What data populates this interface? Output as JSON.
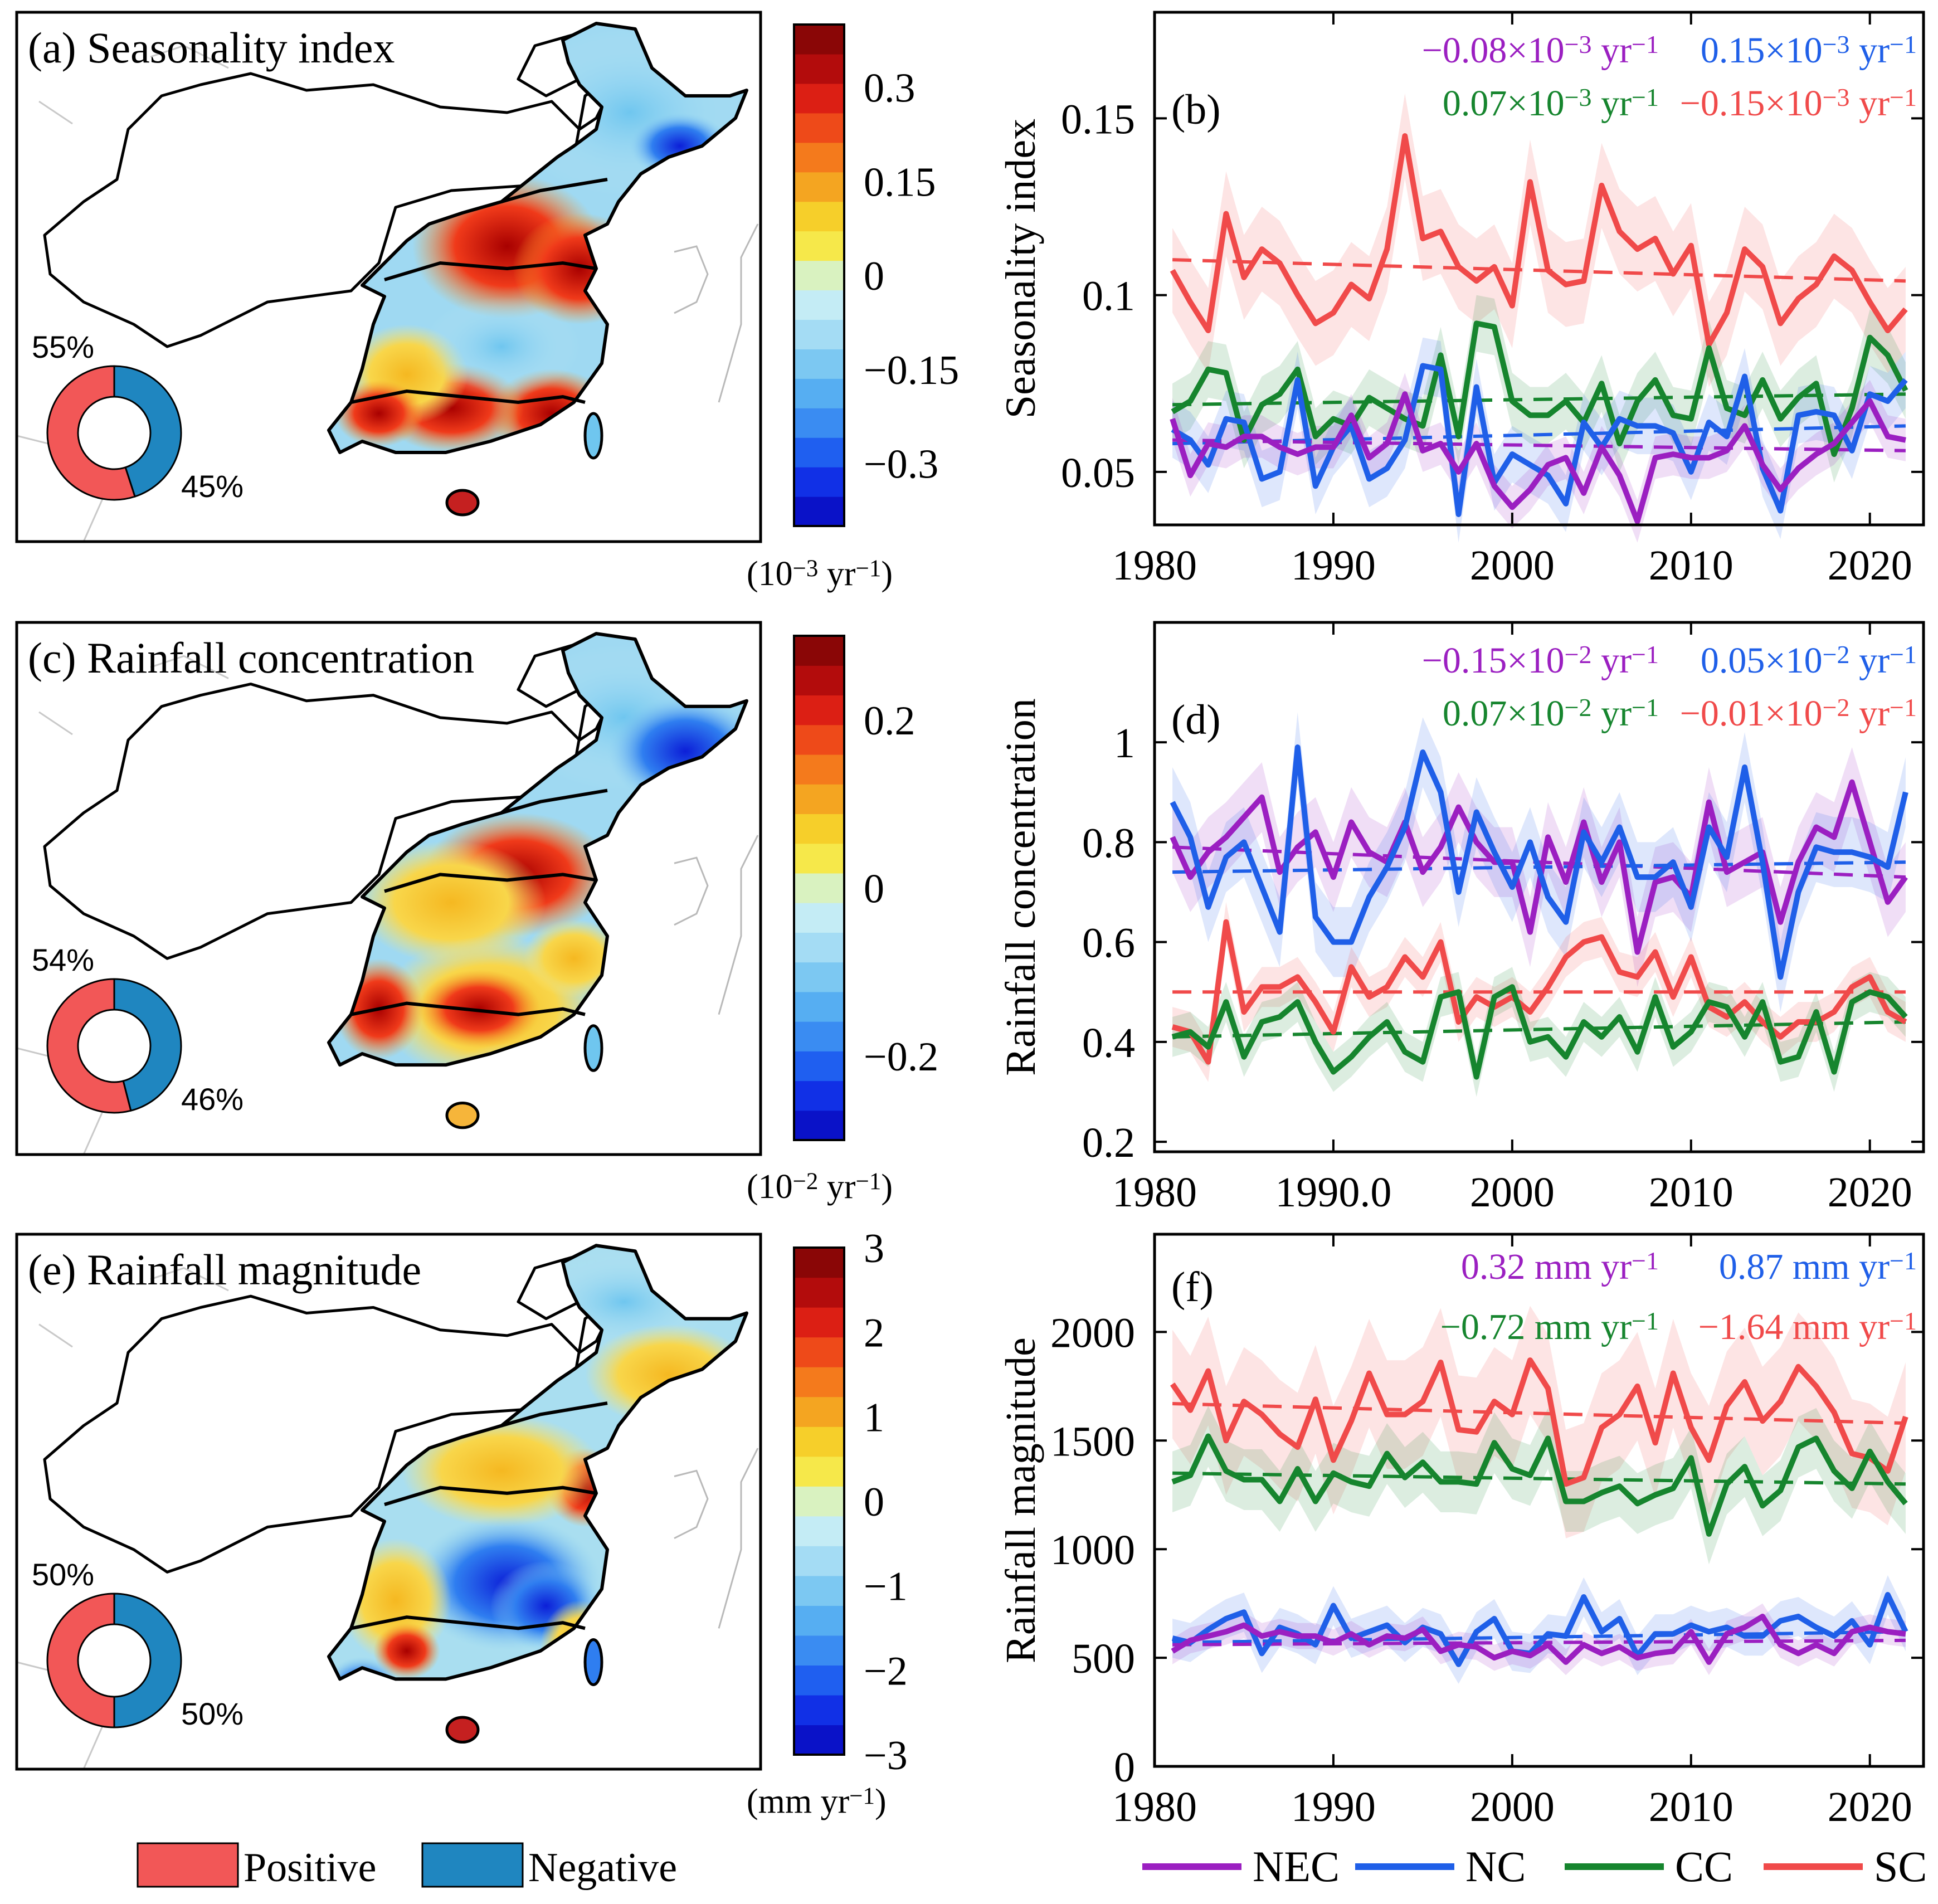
{
  "colors": {
    "NEC": "#9b1fc1",
    "NC": "#1f5fe8",
    "CC": "#16852e",
    "SC": "#f04a4a",
    "positive": "#f25757",
    "negative": "#1f86c0"
  },
  "legend_bottom": {
    "positive": "Positive",
    "negative": "Negative"
  },
  "legend_series": [
    "NEC",
    "NC",
    "CC",
    "SC"
  ],
  "maps": [
    {
      "title": "(a) Seasonality index",
      "positive_pct": 55,
      "negative_pct": 45,
      "positive_label": "55%",
      "negative_label": "45%",
      "colorbar": {
        "tick_labels": [
          "0.3",
          "0.15",
          "0",
          "−0.15",
          "−0.3"
        ],
        "tick_values": [
          0.3,
          0.15,
          0,
          -0.15,
          -0.3
        ],
        "min": -0.4,
        "max": 0.4,
        "unit_prefix": "(10",
        "unit_exp": "−3",
        "unit_mid": " yr",
        "unit_exp2": "−1",
        "unit_suffix": ")"
      }
    },
    {
      "title": "(c) Rainfall concentration",
      "positive_pct": 54,
      "negative_pct": 46,
      "positive_label": "54%",
      "negative_label": "46%",
      "colorbar": {
        "tick_labels": [
          "0.2",
          "0",
          "−0.2"
        ],
        "tick_values": [
          0.2,
          0,
          -0.2
        ],
        "min": -0.3,
        "max": 0.3,
        "unit_prefix": "(10",
        "unit_exp": "−2",
        "unit_mid": " yr",
        "unit_exp2": "−1",
        "unit_suffix": ")"
      }
    },
    {
      "title": "(e) Rainfall magnitude",
      "positive_pct": 50,
      "negative_pct": 50,
      "positive_label": "50%",
      "negative_label": "50%",
      "colorbar": {
        "tick_labels": [
          "3",
          "2",
          "1",
          "0",
          "−1",
          "−2",
          "−3"
        ],
        "tick_values": [
          3,
          2,
          1,
          0,
          -1,
          -2,
          -3
        ],
        "min": -3,
        "max": 3,
        "unit_prefix": "(mm yr",
        "unit_exp": "−1",
        "unit_mid": "",
        "unit_exp2": "",
        "unit_suffix": ")"
      }
    }
  ],
  "chart_data": [
    {
      "type": "line",
      "panel": "(b)",
      "ylabel": "Seasonality index",
      "ylim": [
        0.035,
        0.18
      ],
      "yticks": [
        0.05,
        0.1,
        0.15
      ],
      "ytick_labels": [
        "0.05",
        "0.1",
        "0.15"
      ],
      "xlim": [
        1980,
        2023
      ],
      "xticks": [
        1980,
        1990,
        2000,
        2010,
        2020
      ],
      "xtick_labels": [
        "1980",
        "1990",
        "2000",
        "2010",
        "2020"
      ],
      "trends": [
        {
          "series": "NEC",
          "num": "−0.08×10",
          "exp": "−3",
          "unit": " yr",
          "uexp": "−1"
        },
        {
          "series": "NC",
          "num": "0.15×10",
          "exp": "−3",
          "unit": " yr",
          "uexp": "−1"
        },
        {
          "series": "CC",
          "num": "0.07×10",
          "exp": "−3",
          "unit": " yr",
          "uexp": "−1"
        },
        {
          "series": "SC",
          "num": "−0.15×10",
          "exp": "−3",
          "unit": " yr",
          "uexp": "−1"
        }
      ],
      "x": [
        1981,
        1982,
        1983,
        1984,
        1985,
        1986,
        1987,
        1988,
        1989,
        1990,
        1991,
        1992,
        1993,
        1994,
        1995,
        1996,
        1997,
        1998,
        1999,
        2000,
        2001,
        2002,
        2003,
        2004,
        2005,
        2006,
        2007,
        2008,
        2009,
        2010,
        2011,
        2012,
        2013,
        2014,
        2015,
        2016,
        2017,
        2018,
        2019,
        2020,
        2021,
        2022
      ],
      "series": [
        {
          "name": "SC",
          "band": 0.012,
          "trend": [
            0.11,
            0.104
          ],
          "values": [
            0.107,
            0.098,
            0.09,
            0.123,
            0.105,
            0.113,
            0.109,
            0.1,
            0.092,
            0.095,
            0.103,
            0.099,
            0.113,
            0.145,
            0.116,
            0.118,
            0.108,
            0.104,
            0.108,
            0.097,
            0.132,
            0.107,
            0.103,
            0.104,
            0.131,
            0.118,
            0.113,
            0.116,
            0.106,
            0.114,
            0.086,
            0.095,
            0.113,
            0.108,
            0.092,
            0.099,
            0.103,
            0.111,
            0.107,
            0.098,
            0.09,
            0.096
          ]
        },
        {
          "name": "CC",
          "band": 0.008,
          "trend": [
            0.069,
            0.072
          ],
          "values": [
            0.067,
            0.07,
            0.079,
            0.078,
            0.059,
            0.069,
            0.072,
            0.079,
            0.06,
            0.065,
            0.063,
            0.071,
            0.068,
            0.065,
            0.063,
            0.083,
            0.06,
            0.092,
            0.091,
            0.07,
            0.066,
            0.066,
            0.07,
            0.064,
            0.075,
            0.058,
            0.07,
            0.076,
            0.066,
            0.065,
            0.085,
            0.068,
            0.066,
            0.076,
            0.065,
            0.071,
            0.075,
            0.055,
            0.068,
            0.088,
            0.083,
            0.073
          ]
        },
        {
          "name": "NC",
          "band": 0.008,
          "trend": [
            0.058,
            0.063
          ],
          "values": [
            0.062,
            0.059,
            0.052,
            0.065,
            0.064,
            0.048,
            0.05,
            0.076,
            0.046,
            0.057,
            0.063,
            0.048,
            0.051,
            0.059,
            0.08,
            0.079,
            0.038,
            0.074,
            0.047,
            0.055,
            0.052,
            0.049,
            0.041,
            0.064,
            0.057,
            0.065,
            0.063,
            0.063,
            0.061,
            0.05,
            0.064,
            0.06,
            0.077,
            0.051,
            0.039,
            0.066,
            0.067,
            0.066,
            0.056,
            0.072,
            0.07,
            0.076
          ]
        },
        {
          "name": "NEC",
          "band": 0.006,
          "trend": [
            0.059,
            0.056
          ],
          "values": [
            0.065,
            0.049,
            0.058,
            0.057,
            0.06,
            0.06,
            0.057,
            0.055,
            0.057,
            0.057,
            0.066,
            0.054,
            0.058,
            0.072,
            0.056,
            0.058,
            0.05,
            0.058,
            0.046,
            0.04,
            0.045,
            0.052,
            0.054,
            0.044,
            0.057,
            0.049,
            0.036,
            0.054,
            0.055,
            0.054,
            0.054,
            0.056,
            0.063,
            0.052,
            0.045,
            0.051,
            0.055,
            0.058,
            0.064,
            0.07,
            0.06,
            0.059
          ]
        }
      ]
    },
    {
      "type": "line",
      "panel": "(d)",
      "ylabel": "Rainfall concentration",
      "ylim": [
        0.18,
        1.24
      ],
      "yticks": [
        0.2,
        0.4,
        0.6,
        0.8,
        1.0
      ],
      "ytick_labels": [
        "0.2",
        "0.4",
        "0.6",
        "0.8",
        "1"
      ],
      "xlim": [
        1980,
        2023
      ],
      "xticks": [
        1980,
        1990,
        2000,
        2010,
        2020
      ],
      "xtick_labels": [
        "1980",
        "1990.0",
        "2000",
        "2010",
        "2020"
      ],
      "trends": [
        {
          "series": "NEC",
          "num": "−0.15×10",
          "exp": "−2",
          "unit": " yr",
          "uexp": "−1"
        },
        {
          "series": "NC",
          "num": "0.05×10",
          "exp": "−2",
          "unit": " yr",
          "uexp": "−1"
        },
        {
          "series": "CC",
          "num": "0.07×10",
          "exp": "−2",
          "unit": " yr",
          "uexp": "−1"
        },
        {
          "series": "SC",
          "num": "−0.01×10",
          "exp": "−2",
          "unit": " yr",
          "uexp": "−1"
        }
      ],
      "x": [
        1981,
        1982,
        1983,
        1984,
        1985,
        1986,
        1987,
        1988,
        1989,
        1990,
        1991,
        1992,
        1993,
        1994,
        1995,
        1996,
        1997,
        1998,
        1999,
        2000,
        2001,
        2002,
        2003,
        2004,
        2005,
        2006,
        2007,
        2008,
        2009,
        2010,
        2011,
        2012,
        2013,
        2014,
        2015,
        2016,
        2017,
        2018,
        2019,
        2020,
        2021,
        2022
      ],
      "series": [
        {
          "name": "NEC",
          "band": 0.07,
          "trend": [
            0.79,
            0.73
          ],
          "values": [
            0.81,
            0.73,
            0.78,
            0.81,
            0.85,
            0.89,
            0.74,
            0.79,
            0.82,
            0.73,
            0.84,
            0.78,
            0.76,
            0.84,
            0.74,
            0.79,
            0.87,
            0.8,
            0.76,
            0.76,
            0.62,
            0.81,
            0.72,
            0.84,
            0.72,
            0.8,
            0.58,
            0.72,
            0.73,
            0.69,
            0.88,
            0.74,
            0.76,
            0.78,
            0.64,
            0.76,
            0.83,
            0.81,
            0.92,
            0.8,
            0.68,
            0.73
          ]
        },
        {
          "name": "NC",
          "band": 0.07,
          "trend": [
            0.74,
            0.76
          ],
          "values": [
            0.88,
            0.81,
            0.67,
            0.77,
            0.8,
            0.71,
            0.62,
            0.99,
            0.65,
            0.6,
            0.6,
            0.69,
            0.75,
            0.83,
            0.98,
            0.9,
            0.7,
            0.86,
            0.78,
            0.71,
            0.8,
            0.69,
            0.64,
            0.82,
            0.76,
            0.83,
            0.73,
            0.73,
            0.76,
            0.67,
            0.83,
            0.77,
            0.95,
            0.76,
            0.53,
            0.7,
            0.79,
            0.78,
            0.78,
            0.77,
            0.75,
            0.9
          ]
        },
        {
          "name": "SC",
          "band": 0.04,
          "trend": [
            0.5,
            0.5
          ],
          "values": [
            0.43,
            0.42,
            0.36,
            0.64,
            0.46,
            0.51,
            0.51,
            0.53,
            0.48,
            0.42,
            0.55,
            0.49,
            0.51,
            0.57,
            0.53,
            0.6,
            0.44,
            0.49,
            0.47,
            0.49,
            0.46,
            0.51,
            0.57,
            0.6,
            0.61,
            0.54,
            0.53,
            0.58,
            0.49,
            0.57,
            0.47,
            0.45,
            0.48,
            0.44,
            0.41,
            0.44,
            0.44,
            0.46,
            0.51,
            0.53,
            0.46,
            0.44
          ]
        },
        {
          "name": "CC",
          "band": 0.04,
          "trend": [
            0.41,
            0.44
          ],
          "values": [
            0.41,
            0.42,
            0.39,
            0.48,
            0.37,
            0.44,
            0.45,
            0.48,
            0.4,
            0.34,
            0.37,
            0.41,
            0.44,
            0.38,
            0.36,
            0.49,
            0.5,
            0.33,
            0.49,
            0.51,
            0.4,
            0.41,
            0.37,
            0.44,
            0.41,
            0.45,
            0.38,
            0.49,
            0.39,
            0.42,
            0.48,
            0.47,
            0.41,
            0.48,
            0.36,
            0.37,
            0.46,
            0.34,
            0.48,
            0.5,
            0.49,
            0.45
          ]
        }
      ]
    },
    {
      "type": "line",
      "panel": "(f)",
      "ylabel": "Rainfall magnitude",
      "ylim": [
        0,
        2450
      ],
      "yticks": [
        0,
        500,
        1000,
        1500,
        2000
      ],
      "ytick_labels": [
        "0",
        "500",
        "1000",
        "1500",
        "2000"
      ],
      "xlim": [
        1980,
        2023
      ],
      "xticks": [
        1980,
        1990,
        2000,
        2010,
        2020
      ],
      "xtick_labels": [
        "1980",
        "1990",
        "2000",
        "2010",
        "2020"
      ],
      "trends": [
        {
          "series": "NEC",
          "num": "0.32 mm yr",
          "exp": "−1",
          "unit": "",
          "uexp": ""
        },
        {
          "series": "NC",
          "num": "0.87 mm yr",
          "exp": "−1",
          "unit": "",
          "uexp": ""
        },
        {
          "series": "CC",
          "num": "−0.72 mm yr",
          "exp": "−1",
          "unit": "",
          "uexp": ""
        },
        {
          "series": "SC",
          "num": "−1.64 mm yr",
          "exp": "−1",
          "unit": "",
          "uexp": ""
        }
      ],
      "x": [
        1981,
        1982,
        1983,
        1984,
        1985,
        1986,
        1987,
        1988,
        1989,
        1990,
        1991,
        1992,
        1993,
        1994,
        1995,
        1996,
        1997,
        1998,
        1999,
        2000,
        2001,
        2002,
        2003,
        2004,
        2005,
        2006,
        2007,
        2008,
        2009,
        2010,
        2011,
        2012,
        2013,
        2014,
        2015,
        2016,
        2017,
        2018,
        2019,
        2020,
        2021,
        2022
      ],
      "series": [
        {
          "name": "SC",
          "band": 250,
          "trend": [
            1670,
            1580
          ],
          "values": [
            1760,
            1640,
            1820,
            1500,
            1680,
            1620,
            1530,
            1470,
            1690,
            1410,
            1590,
            1810,
            1620,
            1620,
            1680,
            1860,
            1550,
            1540,
            1680,
            1620,
            1870,
            1740,
            1300,
            1330,
            1560,
            1620,
            1750,
            1490,
            1810,
            1560,
            1410,
            1660,
            1770,
            1590,
            1680,
            1840,
            1750,
            1630,
            1440,
            1420,
            1360,
            1610
          ]
        },
        {
          "name": "CC",
          "band": 140,
          "trend": [
            1350,
            1300
          ],
          "values": [
            1310,
            1340,
            1520,
            1360,
            1320,
            1320,
            1220,
            1370,
            1220,
            1350,
            1310,
            1290,
            1440,
            1330,
            1400,
            1310,
            1310,
            1300,
            1490,
            1370,
            1340,
            1510,
            1220,
            1220,
            1260,
            1290,
            1210,
            1250,
            1280,
            1420,
            1070,
            1300,
            1380,
            1200,
            1270,
            1470,
            1510,
            1360,
            1280,
            1450,
            1310,
            1210
          ]
        },
        {
          "name": "NC",
          "band": 90,
          "trend": [
            570,
            620
          ],
          "values": [
            590,
            570,
            630,
            680,
            710,
            520,
            640,
            610,
            560,
            740,
            590,
            620,
            650,
            570,
            640,
            610,
            470,
            620,
            680,
            530,
            520,
            610,
            600,
            780,
            620,
            680,
            510,
            610,
            610,
            650,
            620,
            640,
            600,
            600,
            670,
            690,
            640,
            600,
            670,
            560,
            790,
            620
          ]
        },
        {
          "name": "NEC",
          "band": 60,
          "trend": [
            560,
            580
          ],
          "values": [
            530,
            580,
            600,
            620,
            650,
            600,
            620,
            600,
            600,
            570,
            610,
            560,
            600,
            590,
            630,
            530,
            560,
            550,
            500,
            530,
            510,
            560,
            480,
            560,
            520,
            550,
            500,
            520,
            530,
            620,
            480,
            610,
            640,
            690,
            560,
            520,
            560,
            520,
            620,
            640,
            620,
            610
          ]
        }
      ]
    }
  ]
}
